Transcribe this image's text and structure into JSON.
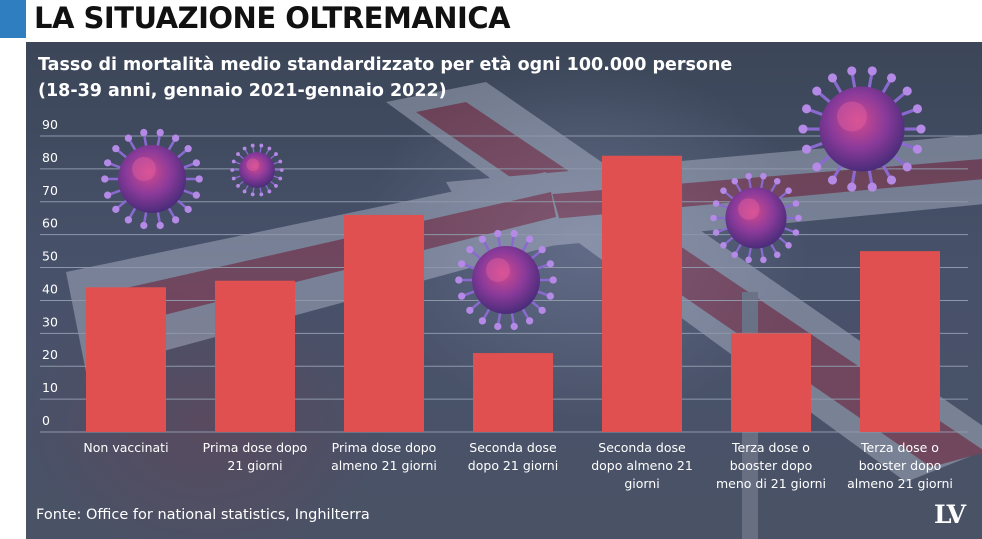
{
  "header": {
    "title": "LA SITUAZIONE OLTREMANICA",
    "accent_color": "#2f7fc0"
  },
  "source_text": "Fonte: Office for national statistics, Inghilterra",
  "logo_text": "LV",
  "colors": {
    "bar": "#e05050",
    "text": "#ffffff",
    "gridline": "#8e97aa",
    "background": "#424c60"
  },
  "chart_data": {
    "type": "bar",
    "title": "Tasso di mortalità medio standardizzato per età ogni 100.000 persone",
    "subtitle": "(18-39 anni, gennaio 2021-gennaio 2022)",
    "xlabel": "",
    "ylabel": "",
    "ylim": [
      0,
      90
    ],
    "yticks": [
      0,
      10,
      20,
      30,
      40,
      50,
      60,
      70,
      80,
      90
    ],
    "grid": true,
    "categories": [
      [
        "Non vaccinati"
      ],
      [
        "Prima dose dopo",
        "21 giorni"
      ],
      [
        "Prima dose dopo",
        "almeno 21 giorni"
      ],
      [
        "Seconda dose",
        "dopo 21 giorni"
      ],
      [
        "Seconda dose",
        "dopo almeno 21",
        "giorni"
      ],
      [
        "Terza dose o",
        "booster dopo",
        "meno di 21 giorni"
      ],
      [
        "Terza dose o",
        "booster dopo",
        "almeno 21 giorni"
      ]
    ],
    "values": [
      44,
      46,
      66,
      24,
      84,
      30,
      55
    ]
  }
}
